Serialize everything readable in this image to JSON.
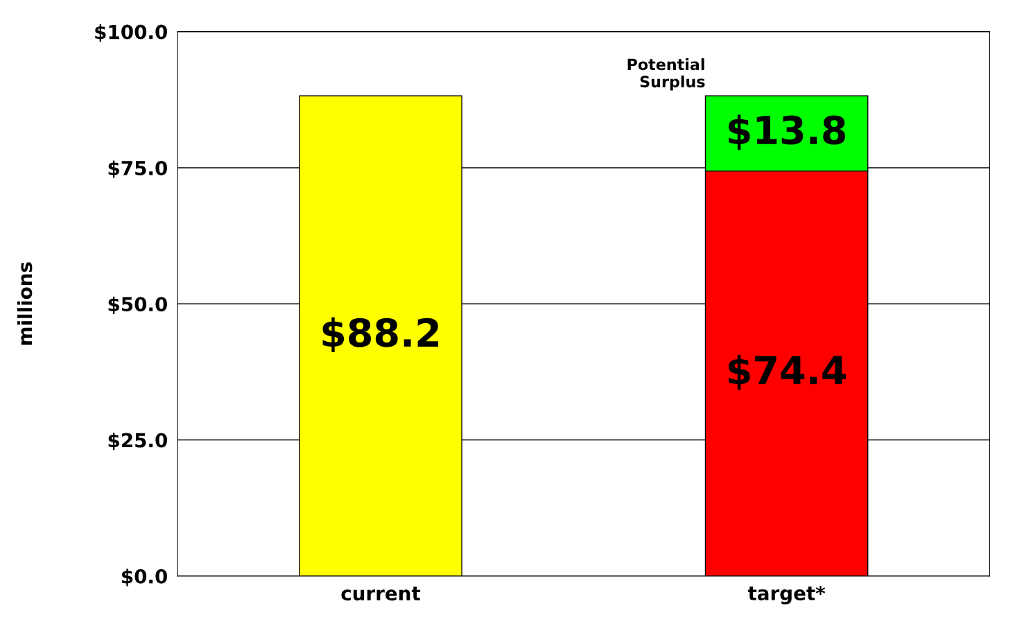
{
  "chart_data": {
    "type": "bar",
    "stacked": true,
    "ylabel": "millions",
    "categories": [
      "current",
      "target*"
    ],
    "series": [
      {
        "color": "#ffff00",
        "values": [
          88.2,
          null
        ],
        "value_labels": [
          "$88.2",
          null
        ]
      },
      {
        "color": "#ff0000",
        "values": [
          null,
          74.4
        ],
        "value_labels": [
          null,
          "$74.4"
        ]
      },
      {
        "color": "#00ff00",
        "values": [
          null,
          13.8
        ],
        "value_labels": [
          null,
          "$13.8"
        ]
      }
    ],
    "annotations": [
      "Potential\nSurplus"
    ],
    "ylim": [
      0,
      100
    ],
    "yticks": [
      {
        "value": 0,
        "label": "$0.0"
      },
      {
        "value": 25,
        "label": "$25.0"
      },
      {
        "value": 50,
        "label": "$50.0"
      },
      {
        "value": 75,
        "label": "$75.0"
      },
      {
        "value": 100,
        "label": "$100.0"
      }
    ],
    "grid": "y",
    "legend": false
  }
}
